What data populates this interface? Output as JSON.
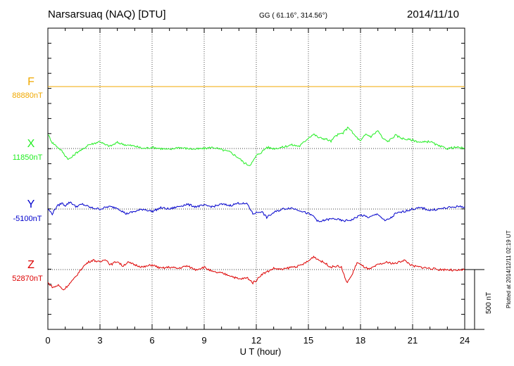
{
  "header": {
    "station": "Narsarsuaq (NAQ)  [DTU]",
    "coords": "GG ( 61.16°, 314.56°)",
    "date": "2014/11/10"
  },
  "footer": {
    "plotted": "Plotted at 2014/12/11 02:19 UT",
    "scale_label": "500 nT"
  },
  "colors": {
    "F": "#f0a800",
    "X": "#22ee22",
    "Y": "#0000cc",
    "Z": "#dd0000"
  },
  "chart_data": {
    "type": "line",
    "title": "Narsarsuaq (NAQ)  [DTU]",
    "xlabel": "U T (hour)",
    "xlim": [
      0,
      24
    ],
    "x_ticks": [
      "0",
      "3",
      "6",
      "9",
      "12",
      "15",
      "18",
      "21",
      "24"
    ],
    "scale_bar_nT": 500,
    "series": [
      {
        "name": "F",
        "baseline_label": "88880nT",
        "baseline_nT": 88880,
        "x": [
          0,
          24
        ],
        "values": [
          0,
          0
        ]
      },
      {
        "name": "X",
        "baseline_label": "11850nT",
        "baseline_nT": 11850,
        "x": [
          0,
          0.25,
          0.5,
          0.8,
          1,
          1.2,
          1.4,
          1.6,
          1.8,
          2,
          2.3,
          2.6,
          3,
          3.3,
          3.6,
          4,
          4.5,
          5,
          5.5,
          6,
          6.5,
          7,
          7.5,
          8,
          8.5,
          9,
          9.5,
          10,
          10.5,
          11,
          11.3,
          11.6,
          11.8,
          12,
          12.3,
          12.6,
          13,
          13.5,
          14,
          14.5,
          15,
          15.3,
          15.6,
          16,
          16.3,
          16.6,
          17,
          17.3,
          17.6,
          18,
          18.3,
          18.6,
          19,
          19.3,
          19.6,
          20,
          20.5,
          21,
          21.5,
          22,
          22.5,
          23,
          23.5,
          24
        ],
        "values": [
          120,
          50,
          20,
          -20,
          -60,
          -90,
          -70,
          -40,
          -20,
          -10,
          30,
          40,
          60,
          30,
          20,
          50,
          30,
          20,
          0,
          10,
          0,
          -10,
          10,
          0,
          -5,
          0,
          10,
          -10,
          -30,
          -80,
          -120,
          -140,
          -110,
          -60,
          -30,
          10,
          0,
          10,
          30,
          20,
          90,
          120,
          90,
          80,
          60,
          110,
          130,
          180,
          120,
          60,
          120,
          100,
          150,
          80,
          60,
          110,
          80,
          70,
          50,
          60,
          20,
          0,
          10,
          0
        ]
      },
      {
        "name": "Y",
        "baseline_label": "-5100nT",
        "baseline_nT": -5100,
        "x": [
          0,
          0.25,
          0.5,
          0.8,
          1,
          1.3,
          1.6,
          2,
          2.5,
          3,
          3.5,
          4,
          4.5,
          5,
          5.5,
          6,
          6.5,
          7,
          7.5,
          8,
          8.5,
          9,
          9.5,
          10,
          10.5,
          11,
          11.5,
          11.8,
          12,
          12.3,
          12.6,
          13,
          13.5,
          14,
          14.5,
          15,
          15.3,
          15.6,
          16,
          16.5,
          17,
          17.5,
          18,
          18.5,
          19,
          19.4,
          19.8,
          20,
          20.5,
          21,
          21.5,
          22,
          22.5,
          23,
          23.5,
          24
        ],
        "values": [
          0,
          -40,
          20,
          50,
          30,
          60,
          20,
          40,
          10,
          0,
          20,
          10,
          -40,
          -20,
          0,
          -20,
          10,
          0,
          20,
          40,
          20,
          30,
          20,
          40,
          30,
          50,
          40,
          -40,
          -30,
          -20,
          -70,
          -30,
          0,
          10,
          -10,
          -40,
          -60,
          -110,
          -90,
          -80,
          -100,
          -90,
          -50,
          -70,
          -40,
          -100,
          -70,
          -40,
          -20,
          0,
          10,
          -10,
          0,
          10,
          20,
          20
        ]
      },
      {
        "name": "Z",
        "baseline_label": "52870nT",
        "baseline_nT": 52870,
        "x": [
          0,
          0.3,
          0.6,
          0.9,
          1.1,
          1.3,
          1.5,
          1.7,
          2,
          2.3,
          2.6,
          3,
          3.3,
          3.6,
          4,
          4.3,
          4.6,
          5,
          5.5,
          6,
          6.5,
          7,
          7.5,
          8,
          8.5,
          9,
          9.5,
          10,
          10.5,
          11,
          11.5,
          11.8,
          12,
          12.3,
          12.6,
          13,
          13.5,
          14,
          14.5,
          15,
          15.3,
          15.6,
          16,
          16.3,
          16.6,
          16.9,
          17.2,
          17.5,
          17.8,
          18,
          18.5,
          19,
          19.5,
          20,
          20.5,
          21,
          21.5,
          22,
          22.5,
          23,
          23.5,
          24
        ],
        "values": [
          -110,
          -150,
          -130,
          -170,
          -140,
          -110,
          -80,
          -40,
          20,
          60,
          80,
          60,
          90,
          40,
          70,
          30,
          60,
          40,
          20,
          40,
          10,
          20,
          10,
          30,
          0,
          20,
          -20,
          -30,
          -50,
          -80,
          -70,
          -110,
          -90,
          -40,
          -20,
          10,
          0,
          20,
          30,
          70,
          110,
          80,
          50,
          20,
          30,
          20,
          -110,
          -50,
          60,
          40,
          0,
          40,
          60,
          50,
          80,
          30,
          20,
          10,
          0,
          0,
          -10,
          0
        ]
      }
    ]
  }
}
